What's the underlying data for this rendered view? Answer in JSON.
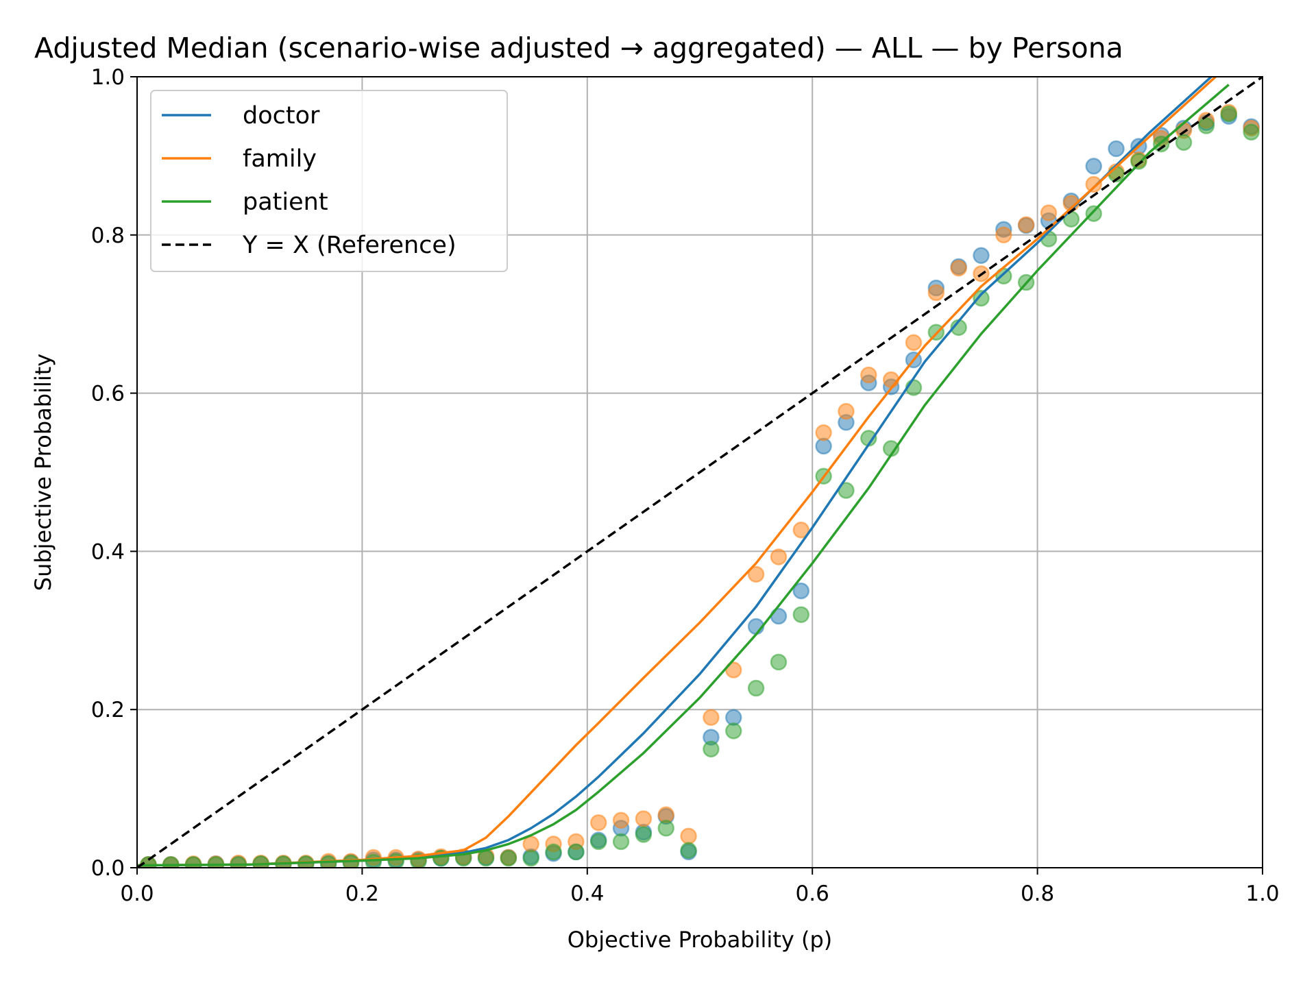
{
  "chart_data": {
    "type": "line",
    "title": "Adjusted Median (scenario-wise adjusted → aggregated) — ALL — by Persona",
    "xlabel": "Objective Probability (p)",
    "ylabel": "Subjective Probability",
    "xlim": [
      0.0,
      1.0
    ],
    "ylim": [
      0.0,
      1.0
    ],
    "xticks": [
      "0.0",
      "0.2",
      "0.4",
      "0.6",
      "0.8",
      "1.0"
    ],
    "yticks": [
      "0.0",
      "0.2",
      "0.4",
      "0.6",
      "0.8",
      "1.0"
    ],
    "grid": true,
    "legend_position": "top-left",
    "colors": {
      "doctor": "#1f77b4",
      "family": "#ff7f0e",
      "patient": "#2ca02c",
      "reference": "#000000"
    },
    "series": [
      {
        "name": "doctor",
        "x": [
          0.0,
          0.1,
          0.2,
          0.25,
          0.29,
          0.31,
          0.33,
          0.35,
          0.37,
          0.39,
          0.41,
          0.45,
          0.5,
          0.55,
          0.6,
          0.65,
          0.7,
          0.75,
          0.8,
          0.85,
          0.9,
          0.97
        ],
        "y": [
          0.003,
          0.004,
          0.009,
          0.013,
          0.019,
          0.025,
          0.035,
          0.05,
          0.068,
          0.09,
          0.115,
          0.17,
          0.245,
          0.33,
          0.43,
          0.535,
          0.64,
          0.725,
          0.79,
          0.86,
          0.93,
          1.02
        ]
      },
      {
        "name": "family",
        "x": [
          0.0,
          0.1,
          0.2,
          0.25,
          0.29,
          0.31,
          0.33,
          0.35,
          0.37,
          0.39,
          0.41,
          0.45,
          0.5,
          0.55,
          0.6,
          0.65,
          0.7,
          0.75,
          0.8,
          0.85,
          0.9,
          0.97
        ],
        "y": [
          0.003,
          0.004,
          0.01,
          0.015,
          0.022,
          0.038,
          0.065,
          0.095,
          0.125,
          0.155,
          0.183,
          0.24,
          0.31,
          0.385,
          0.475,
          0.57,
          0.66,
          0.735,
          0.795,
          0.86,
          0.925,
          1.015
        ]
      },
      {
        "name": "patient",
        "x": [
          0.0,
          0.1,
          0.2,
          0.25,
          0.29,
          0.31,
          0.33,
          0.35,
          0.37,
          0.39,
          0.41,
          0.45,
          0.5,
          0.55,
          0.6,
          0.65,
          0.7,
          0.75,
          0.8,
          0.85,
          0.9,
          0.97
        ],
        "y": [
          0.003,
          0.004,
          0.009,
          0.012,
          0.017,
          0.022,
          0.03,
          0.041,
          0.055,
          0.073,
          0.096,
          0.145,
          0.215,
          0.295,
          0.385,
          0.48,
          0.585,
          0.675,
          0.755,
          0.83,
          0.905,
          0.99
        ]
      },
      {
        "name": "Y = X (Reference)",
        "x": [
          0.0,
          1.0
        ],
        "y": [
          0.0,
          1.0
        ]
      }
    ],
    "scatter": [
      {
        "series": "doctor",
        "x": [
          0.01,
          0.03,
          0.05,
          0.07,
          0.09,
          0.11,
          0.13,
          0.15,
          0.17,
          0.19,
          0.21,
          0.23,
          0.25,
          0.27,
          0.29,
          0.31,
          0.33,
          0.35,
          0.37,
          0.39,
          0.41,
          0.43,
          0.45,
          0.47,
          0.49,
          0.51,
          0.53,
          0.55,
          0.57,
          0.59,
          0.61,
          0.63,
          0.65,
          0.67,
          0.69,
          0.71,
          0.73,
          0.75,
          0.77,
          0.79,
          0.81,
          0.83,
          0.85,
          0.87,
          0.89,
          0.91,
          0.93,
          0.95,
          0.97,
          0.99
        ],
        "y": [
          0.004,
          0.004,
          0.004,
          0.005,
          0.005,
          0.005,
          0.005,
          0.005,
          0.006,
          0.007,
          0.01,
          0.01,
          0.01,
          0.012,
          0.013,
          0.013,
          0.013,
          0.014,
          0.018,
          0.02,
          0.035,
          0.05,
          0.045,
          0.065,
          0.02,
          0.165,
          0.19,
          0.305,
          0.318,
          0.35,
          0.533,
          0.563,
          0.613,
          0.608,
          0.642,
          0.733,
          0.76,
          0.774,
          0.807,
          0.812,
          0.818,
          0.843,
          0.887,
          0.909,
          0.912,
          0.926,
          0.935,
          0.942,
          0.95,
          0.937
        ]
      },
      {
        "series": "family",
        "x": [
          0.01,
          0.03,
          0.05,
          0.07,
          0.09,
          0.11,
          0.13,
          0.15,
          0.17,
          0.19,
          0.21,
          0.23,
          0.25,
          0.27,
          0.29,
          0.31,
          0.33,
          0.35,
          0.37,
          0.39,
          0.41,
          0.43,
          0.45,
          0.47,
          0.49,
          0.51,
          0.53,
          0.55,
          0.57,
          0.59,
          0.61,
          0.63,
          0.65,
          0.67,
          0.69,
          0.71,
          0.73,
          0.75,
          0.77,
          0.79,
          0.81,
          0.83,
          0.85,
          0.87,
          0.89,
          0.91,
          0.93,
          0.95,
          0.97,
          0.99
        ],
        "y": [
          0.004,
          0.004,
          0.005,
          0.005,
          0.006,
          0.006,
          0.006,
          0.006,
          0.008,
          0.008,
          0.013,
          0.013,
          0.011,
          0.014,
          0.014,
          0.015,
          0.013,
          0.03,
          0.03,
          0.033,
          0.057,
          0.06,
          0.062,
          0.067,
          0.04,
          0.19,
          0.25,
          0.371,
          0.393,
          0.427,
          0.55,
          0.577,
          0.623,
          0.617,
          0.664,
          0.727,
          0.758,
          0.751,
          0.8,
          0.813,
          0.828,
          0.84,
          0.864,
          0.88,
          0.895,
          0.922,
          0.932,
          0.945,
          0.955,
          0.935
        ]
      },
      {
        "series": "patient",
        "x": [
          0.01,
          0.03,
          0.05,
          0.07,
          0.09,
          0.11,
          0.13,
          0.15,
          0.17,
          0.19,
          0.21,
          0.23,
          0.25,
          0.27,
          0.29,
          0.31,
          0.33,
          0.35,
          0.37,
          0.39,
          0.41,
          0.43,
          0.45,
          0.47,
          0.49,
          0.51,
          0.53,
          0.55,
          0.57,
          0.59,
          0.61,
          0.63,
          0.65,
          0.67,
          0.69,
          0.71,
          0.73,
          0.75,
          0.77,
          0.79,
          0.81,
          0.83,
          0.85,
          0.87,
          0.89,
          0.91,
          0.93,
          0.95,
          0.97,
          0.99
        ],
        "y": [
          0.004,
          0.004,
          0.004,
          0.004,
          0.004,
          0.005,
          0.005,
          0.005,
          0.005,
          0.006,
          0.007,
          0.008,
          0.008,
          0.012,
          0.012,
          0.012,
          0.012,
          0.012,
          0.02,
          0.02,
          0.033,
          0.033,
          0.042,
          0.05,
          0.022,
          0.15,
          0.173,
          0.227,
          0.26,
          0.32,
          0.495,
          0.477,
          0.543,
          0.53,
          0.607,
          0.677,
          0.683,
          0.72,
          0.748,
          0.74,
          0.795,
          0.82,
          0.827,
          0.877,
          0.893,
          0.915,
          0.917,
          0.938,
          0.953,
          0.93
        ]
      }
    ]
  }
}
